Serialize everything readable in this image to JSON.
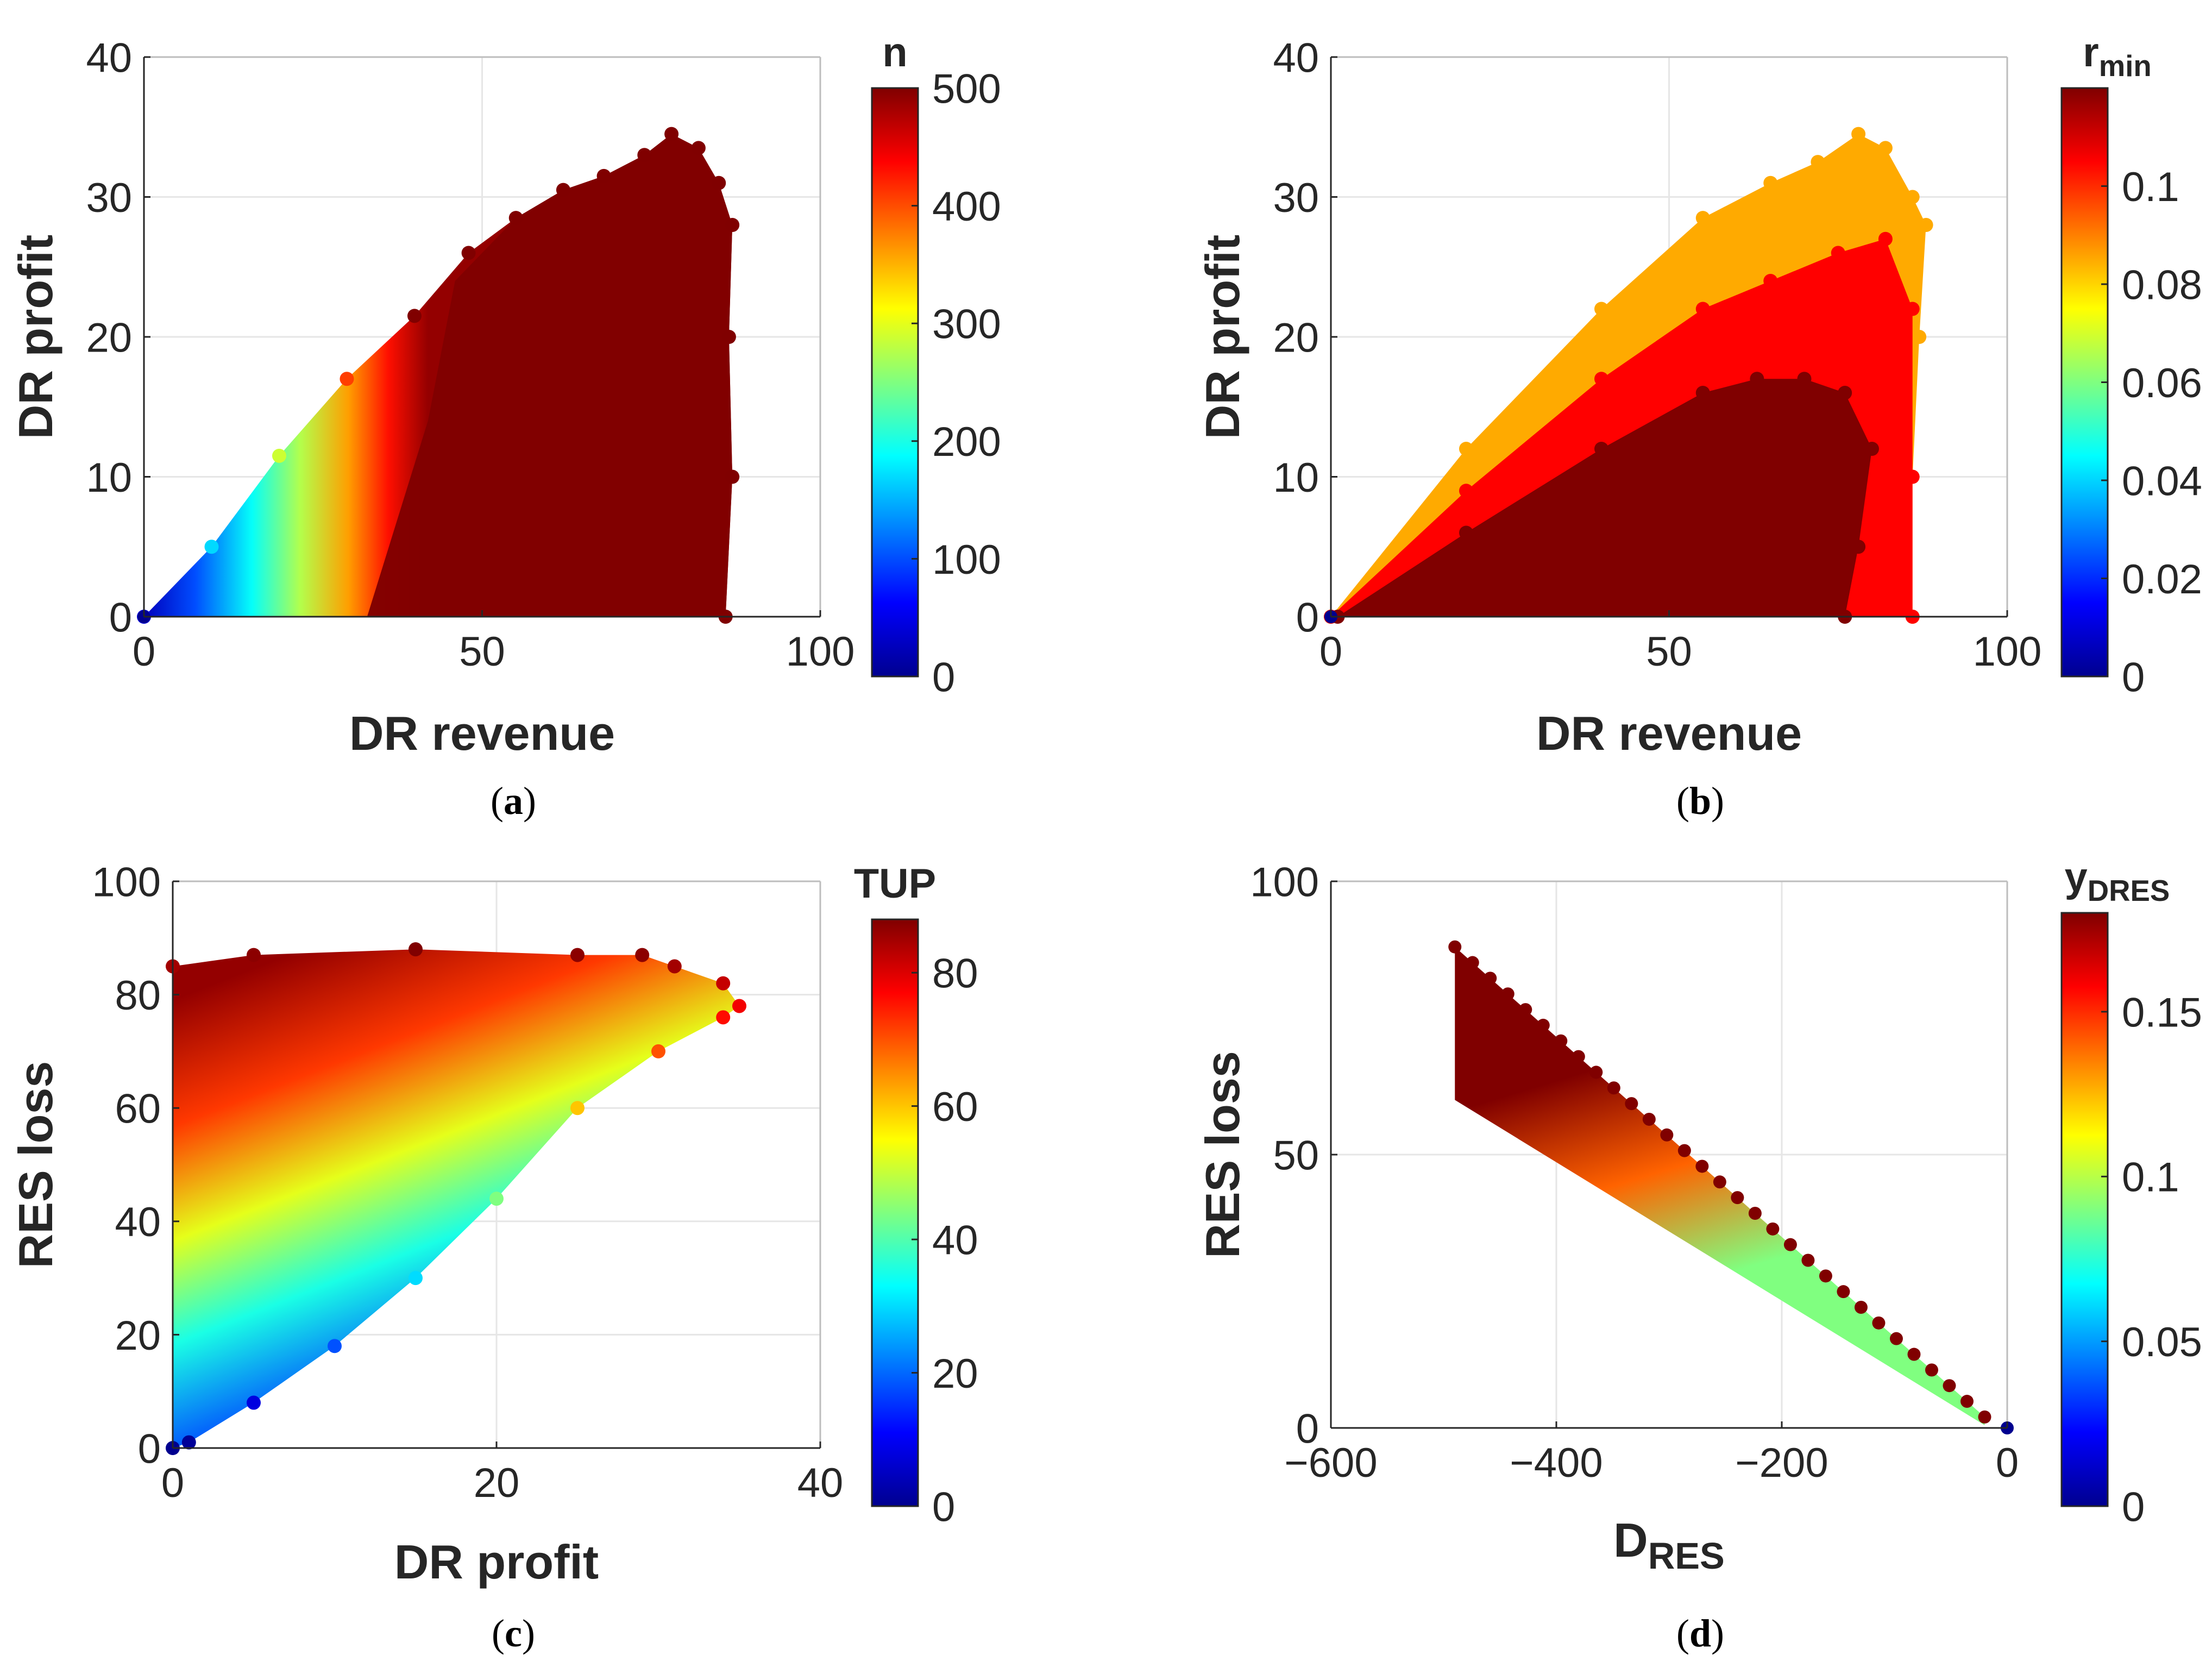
{
  "colormap": {
    "name": "jet",
    "stops": [
      "#00008f",
      "#0000ff",
      "#00ffff",
      "#ffff00",
      "#ff0000",
      "#800000"
    ],
    "stop_positions": [
      0,
      0.125,
      0.375,
      0.625,
      0.875,
      1
    ]
  },
  "chart_data": [
    {
      "id": "a",
      "type": "scatter",
      "caption_letter": "a",
      "xlabel": "DR revenue",
      "ylabel": "DR profit",
      "xlim": [
        0,
        100
      ],
      "ylim": [
        0,
        40
      ],
      "xticks": [
        0,
        50,
        100
      ],
      "yticks": [
        0,
        10,
        20,
        30,
        40
      ],
      "colorbar": {
        "label": "n",
        "label_sub": "",
        "range": [
          0,
          500
        ],
        "ticks": [
          0,
          100,
          200,
          300,
          400,
          500
        ],
        "tick_labels": [
          "0",
          "100",
          "200",
          "300",
          "400",
          "500"
        ]
      },
      "region": {
        "description": "point cloud colored by n",
        "boundary": [
          [
            0,
            0
          ],
          [
            10,
            5
          ],
          [
            20,
            11.5
          ],
          [
            30,
            17
          ],
          [
            40,
            21.5
          ],
          [
            48,
            26
          ],
          [
            55,
            28.5
          ],
          [
            62,
            30.5
          ],
          [
            68,
            31.5
          ],
          [
            74,
            33
          ],
          [
            78,
            34.5
          ],
          [
            82,
            33.5
          ],
          [
            85,
            31
          ],
          [
            87,
            28
          ],
          [
            86.5,
            20
          ],
          [
            87,
            10
          ],
          [
            86,
            0
          ]
        ],
        "color_bands": [
          {
            "value": 500,
            "boundary": [
              [
                33,
                0
              ],
              [
                42,
                14
              ],
              [
                46,
                24
              ],
              [
                55,
                28.5
              ],
              [
                62,
                30.5
              ],
              [
                68,
                31.5
              ],
              [
                74,
                33
              ],
              [
                78,
                34.5
              ],
              [
                82,
                33.5
              ],
              [
                85,
                31
              ],
              [
                87,
                28
              ],
              [
                86.5,
                20
              ],
              [
                87,
                10
              ],
              [
                86,
                0
              ]
            ]
          }
        ]
      },
      "points": [
        {
          "x": 0,
          "y": 0,
          "c": 0
        }
      ]
    },
    {
      "id": "b",
      "type": "scatter",
      "caption_letter": "b",
      "xlabel": "DR revenue",
      "ylabel": "DR profit",
      "xlim": [
        0,
        100
      ],
      "ylim": [
        0,
        40
      ],
      "xticks": [
        0,
        50,
        100
      ],
      "yticks": [
        0,
        10,
        20,
        30,
        40
      ],
      "colorbar": {
        "label": "r",
        "label_sub": "min",
        "range": [
          0,
          0.12
        ],
        "ticks": [
          0,
          0.02,
          0.04,
          0.06,
          0.08,
          0.1
        ],
        "tick_labels": [
          "0",
          "0.02",
          "0.04",
          "0.06",
          "0.08",
          "0.1"
        ]
      },
      "region": {
        "description": "three nested bands",
        "color_bands": [
          {
            "value": 0.085,
            "boundary": [
              [
                0,
                0
              ],
              [
                20,
                12
              ],
              [
                40,
                22
              ],
              [
                55,
                28.5
              ],
              [
                65,
                31
              ],
              [
                72,
                32.5
              ],
              [
                78,
                34.5
              ],
              [
                82,
                33.5
              ],
              [
                86,
                30
              ],
              [
                88,
                28
              ],
              [
                87,
                20
              ],
              [
                86,
                10
              ],
              [
                86,
                0
              ]
            ]
          },
          {
            "value": 0.105,
            "boundary": [
              [
                0,
                0
              ],
              [
                20,
                9
              ],
              [
                40,
                17
              ],
              [
                55,
                22
              ],
              [
                65,
                24
              ],
              [
                75,
                26
              ],
              [
                82,
                27
              ],
              [
                86,
                22
              ],
              [
                86,
                10
              ],
              [
                86,
                0
              ]
            ]
          },
          {
            "value": 0.12,
            "boundary": [
              [
                1,
                0
              ],
              [
                20,
                6
              ],
              [
                40,
                12
              ],
              [
                55,
                16
              ],
              [
                63,
                17
              ],
              [
                70,
                17
              ],
              [
                76,
                16
              ],
              [
                80,
                12
              ],
              [
                78,
                5
              ],
              [
                76,
                0
              ]
            ]
          }
        ]
      },
      "points": [
        {
          "x": 0,
          "y": 0,
          "c": 0
        }
      ]
    },
    {
      "id": "c",
      "type": "scatter",
      "caption_letter": "c",
      "xlabel": "DR profit",
      "ylabel": "RES loss",
      "xlim": [
        0,
        40
      ],
      "ylim": [
        0,
        100
      ],
      "xticks": [
        0,
        20,
        40
      ],
      "yticks": [
        0,
        20,
        40,
        60,
        80,
        100
      ],
      "colorbar": {
        "label": "TUP",
        "label_sub": "",
        "range": [
          0,
          88
        ],
        "ticks": [
          0,
          20,
          40,
          60,
          80
        ],
        "tick_labels": [
          "0",
          "20",
          "40",
          "60",
          "80"
        ]
      },
      "region": {
        "description": "triangular cloud, color equals TUP",
        "boundary": [
          [
            0,
            0
          ],
          [
            0,
            85
          ],
          [
            5,
            87
          ],
          [
            15,
            88
          ],
          [
            25,
            87
          ],
          [
            29,
            87
          ],
          [
            31,
            85
          ],
          [
            34,
            82
          ],
          [
            35,
            78
          ],
          [
            34,
            76
          ],
          [
            30,
            70
          ],
          [
            25,
            60
          ],
          [
            20,
            44
          ],
          [
            15,
            30
          ],
          [
            10,
            18
          ],
          [
            5,
            8
          ],
          [
            1,
            1
          ]
        ]
      },
      "points": [
        {
          "x": 0,
          "y": 0,
          "c": 0
        }
      ]
    },
    {
      "id": "d",
      "type": "scatter",
      "caption_letter": "d",
      "xlabel": "D",
      "xlabel_sub": "RES",
      "ylabel": "RES loss",
      "xlim": [
        -600,
        0
      ],
      "ylim": [
        0,
        100
      ],
      "xticks": [
        -600,
        -400,
        -200,
        0
      ],
      "xtick_labels": [
        "−600",
        "−400",
        "−200",
        "0"
      ],
      "yticks": [
        0,
        50,
        100
      ],
      "colorbar": {
        "label": "y",
        "label_sub": "DRES",
        "range": [
          0,
          0.18
        ],
        "ticks": [
          0,
          0.05,
          0.1,
          0.15
        ],
        "tick_labels": [
          "0",
          "0.05",
          "0.1",
          "0.15"
        ]
      },
      "region": {
        "description": "wedge; upper edge dark red, lower edge green",
        "upper_edge": [
          [
            -490,
            88
          ],
          [
            -20,
            2
          ]
        ],
        "lower_edge": [
          [
            -490,
            60
          ],
          [
            -20,
            0.5
          ]
        ],
        "upper_value": 0.18,
        "lower_value": 0.09
      },
      "points": [
        {
          "x": 0,
          "y": 0,
          "c": 0
        }
      ]
    }
  ]
}
